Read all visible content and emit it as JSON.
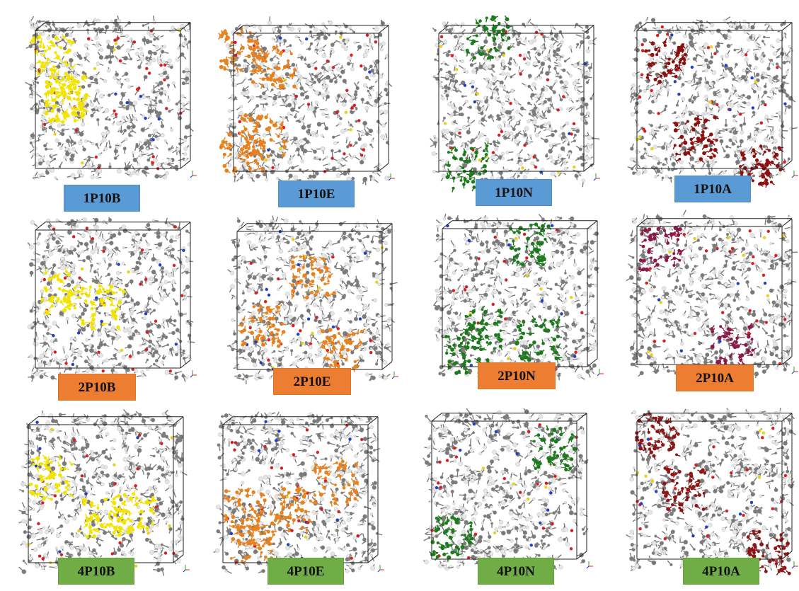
{
  "row_colors": [
    "#5b9bd5",
    "#ed7d31",
    "#70ad47"
  ],
  "atom_colors": {
    "carbon": "#7a7a7a",
    "hydrogen": "#e6e6e6",
    "oxygen": "#d81e1e",
    "nitrogen": "#1f3fc4",
    "sulfur": "#e8d21a"
  },
  "highlight_colors": {
    "B": "#f2e400",
    "E": "#e8821f",
    "N": "#1f7a1f",
    "A1": "#8b1010",
    "A2": "#8a1a4a",
    "A4": "#8b1818"
  },
  "panels": [
    {
      "label": "1P10B",
      "highlight": "B"
    },
    {
      "label": "1P10E",
      "highlight": "E"
    },
    {
      "label": "1P10N",
      "highlight": "N"
    },
    {
      "label": "1P10A",
      "highlight": "A1"
    },
    {
      "label": "2P10B",
      "highlight": "B"
    },
    {
      "label": "2P10E",
      "highlight": "E"
    },
    {
      "label": "2P10N",
      "highlight": "N"
    },
    {
      "label": "2P10A",
      "highlight": "A2"
    },
    {
      "label": "4P10B",
      "highlight": "B"
    },
    {
      "label": "4P10E",
      "highlight": "E"
    },
    {
      "label": "4P10N",
      "highlight": "N"
    },
    {
      "label": "4P10A",
      "highlight": "A4"
    }
  ]
}
